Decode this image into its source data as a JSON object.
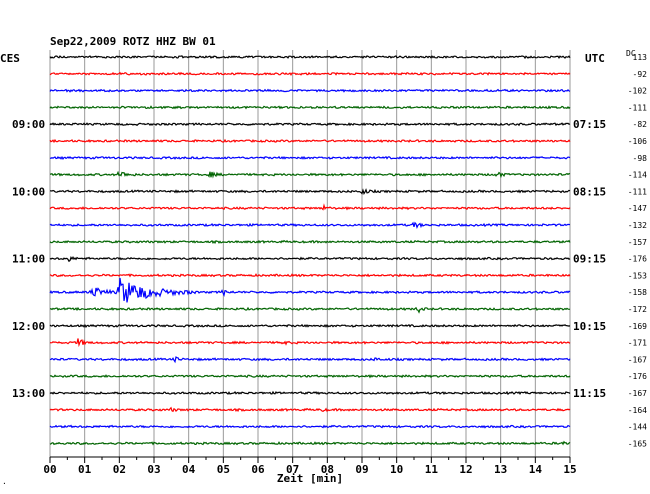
{
  "title": "Sep22,2009   ROTZ HHZ BW 01",
  "left_tz": "CES",
  "right_tz": "UTC",
  "dc_header": "DC",
  "xlabel": "Zeit [min]",
  "corner_mark": "·",
  "chart_data": {
    "type": "line",
    "title": "Sep22,2009   ROTZ HHZ BW 01",
    "xlabel": "Zeit [min]",
    "ylabel": "",
    "xlim": [
      0,
      15
    ],
    "x_ticks": [
      "00",
      "01",
      "02",
      "03",
      "04",
      "05",
      "06",
      "07",
      "08",
      "09",
      "10",
      "11",
      "12",
      "13",
      "14",
      "15"
    ],
    "trace_colors": [
      "#000000",
      "#ff0000",
      "#0000ff",
      "#006400"
    ],
    "left_time_labels": [
      {
        "trace": 4,
        "label": "09:00"
      },
      {
        "trace": 8,
        "label": "10:00"
      },
      {
        "trace": 12,
        "label": "11:00"
      },
      {
        "trace": 16,
        "label": "12:00"
      },
      {
        "trace": 20,
        "label": "13:00"
      }
    ],
    "right_time_labels": [
      {
        "trace": 4,
        "label": "07:15"
      },
      {
        "trace": 8,
        "label": "08:15"
      },
      {
        "trace": 12,
        "label": "09:15"
      },
      {
        "trace": 16,
        "label": "10:15"
      },
      {
        "trace": 20,
        "label": "11:15"
      }
    ],
    "dc_offsets": [
      "113",
      "-92",
      "-102",
      "-111",
      "-82",
      "-106",
      "-98",
      "-114",
      "-111",
      "-147",
      "-132",
      "-157",
      "-176",
      "-153",
      "-158",
      "-172",
      "-169",
      "-171",
      "-167",
      "-176",
      "-167",
      "-164",
      "-144",
      "-165"
    ],
    "events": [
      {
        "trace": 7,
        "minute": 2.0,
        "amp": 0.25,
        "dur": 0.5
      },
      {
        "trace": 7,
        "minute": 4.6,
        "amp": 0.2,
        "dur": 0.4
      },
      {
        "trace": 7,
        "minute": 12.9,
        "amp": 0.25,
        "dur": 0.3
      },
      {
        "trace": 8,
        "minute": 9.0,
        "amp": 0.2,
        "dur": 0.4
      },
      {
        "trace": 9,
        "minute": 7.9,
        "amp": 0.15,
        "dur": 0.3
      },
      {
        "trace": 10,
        "minute": 10.5,
        "amp": 0.2,
        "dur": 0.4
      },
      {
        "trace": 12,
        "minute": 0.5,
        "amp": 0.25,
        "dur": 0.3
      },
      {
        "trace": 14,
        "minute": 1.2,
        "amp": 0.45,
        "dur": 0.8
      },
      {
        "trace": 14,
        "minute": 2.0,
        "amp": 1.0,
        "dur": 2.2
      },
      {
        "trace": 14,
        "minute": 5.0,
        "amp": 0.2,
        "dur": 0.3
      },
      {
        "trace": 15,
        "minute": 10.6,
        "amp": 0.25,
        "dur": 0.3
      },
      {
        "trace": 17,
        "minute": 0.8,
        "amp": 0.3,
        "dur": 0.4
      },
      {
        "trace": 17,
        "minute": 6.7,
        "amp": 0.15,
        "dur": 0.3
      },
      {
        "trace": 18,
        "minute": 3.6,
        "amp": 0.15,
        "dur": 0.3
      },
      {
        "trace": 18,
        "minute": 9.4,
        "amp": 0.12,
        "dur": 0.3
      },
      {
        "trace": 21,
        "minute": 3.5,
        "amp": 0.12,
        "dur": 0.3
      },
      {
        "trace": 21,
        "minute": 7.8,
        "amp": 0.12,
        "dur": 0.3
      },
      {
        "trace": 23,
        "minute": 14.8,
        "amp": 0.15,
        "dur": 0.3
      }
    ]
  }
}
